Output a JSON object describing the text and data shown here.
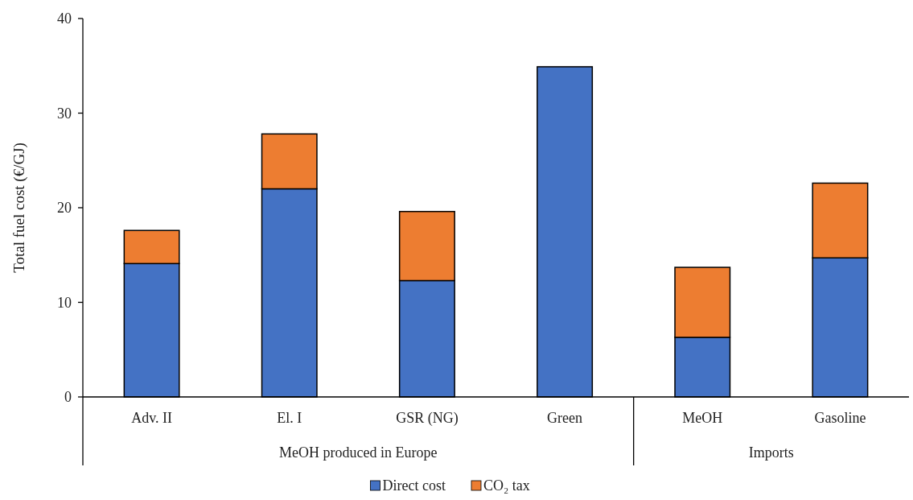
{
  "chart_data": {
    "type": "bar",
    "ylabel": "Total fuel cost (€/GJ)",
    "categories": [
      "Adv. II",
      "El. I",
      "GSR (NG)",
      "Green",
      "MeOH",
      "Gasoline"
    ],
    "series": [
      {
        "name": "Direct cost",
        "color": "#4472c4",
        "values": [
          14.1,
          22.0,
          12.3,
          34.9,
          6.3,
          14.7
        ]
      },
      {
        "name": "CO₂ tax",
        "color": "#ed7d31",
        "values": [
          3.5,
          5.8,
          7.3,
          0,
          7.4,
          7.9
        ]
      }
    ],
    "stacked": true,
    "ylim": [
      0,
      40
    ],
    "yticks": [
      0,
      10,
      20,
      30,
      40
    ],
    "grid": false,
    "legend": "bottom",
    "annotations": [
      "MeOH produced in Europe",
      "Imports"
    ]
  }
}
